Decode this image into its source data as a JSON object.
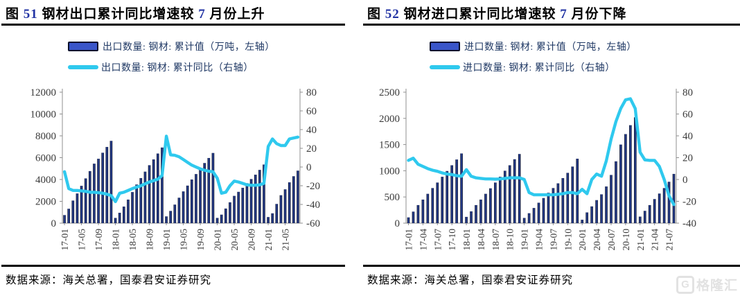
{
  "colors": {
    "bar_core": "#2c47a5",
    "bar_edge": "#04060f",
    "line": "#2fc9ee",
    "legend_text": "#1f3864",
    "title_number_blue": "#2334a4",
    "axis_text": "#3a3a3a",
    "axis_line": "#8f8f8f"
  },
  "watermark": {
    "icon_letter": "G",
    "text": "格隆汇"
  },
  "charts": [
    {
      "title": {
        "prefix": "图 ",
        "number": "51",
        "mid": " 钢材出口累计同比增速较 ",
        "number2": "7",
        "end": " 月份上升"
      },
      "legend": [
        {
          "type": "bar",
          "label": "出口数量: 钢材: 累计值（万吨，左轴）"
        },
        {
          "type": "line",
          "label": "出口数量: 钢材: 累计同比（右轴）"
        }
      ],
      "source": "数据来源：海关总署，国泰君安证券研究"
    },
    {
      "title": {
        "prefix": "图 ",
        "number": "52",
        "mid": " 钢材进口累计同比增速较 ",
        "number2": "7",
        "end": " 月份下降"
      },
      "legend": [
        {
          "type": "bar",
          "label": "进口数量: 钢材: 累计值（万吨，左轴）"
        },
        {
          "type": "line",
          "label": "进口数量: 钢材: 累计同比（右轴）"
        }
      ],
      "source": "数据来源：海关总署，国泰君安证券研究"
    }
  ],
  "chart_data": [
    {
      "type": "bar+line",
      "title": "图 51 钢材出口累计同比增速较 7 月份上升",
      "x_monthly_range": "2017-01 … 2021-08 (56 monthly points)",
      "x_tick_labels": [
        "17-01",
        "17-05",
        "17-09",
        "18-01",
        "18-05",
        "18-09",
        "19-01",
        "19-05",
        "19-09",
        "20-01",
        "20-05",
        "20-09",
        "21-01",
        "21-05"
      ],
      "x_tick_step": 4,
      "left_axis": {
        "min": 0,
        "max": 12000,
        "ticks": [
          0,
          2000,
          4000,
          6000,
          8000,
          10000,
          12000
        ]
      },
      "right_axis": {
        "min": -60,
        "max": 80,
        "ticks": [
          -60,
          -40,
          -20,
          0,
          20,
          40,
          60,
          80
        ]
      },
      "grid": false,
      "legend_position": "top",
      "series": [
        {
          "name": "出口数量: 钢材: 累计值（万吨，左轴）",
          "type": "bar",
          "axis": "left",
          "values": [
            740,
            1320,
            2070,
            2720,
            3420,
            4100,
            4770,
            5450,
            5900,
            6450,
            6980,
            7540,
            480,
            950,
            1520,
            2160,
            2850,
            3540,
            4130,
            4720,
            5310,
            5840,
            6380,
            6930,
            620,
            1120,
            1700,
            2330,
            2910,
            3440,
            4000,
            4500,
            5000,
            5510,
            5970,
            6430,
            480,
            780,
            1340,
            1910,
            2500,
            2870,
            3240,
            3660,
            4040,
            4440,
            4880,
            5370,
            560,
            900,
            1760,
            2560,
            3100,
            3740,
            4300,
            4810
          ]
        },
        {
          "name": "出口数量: 钢材: 累计同比（右轴）",
          "type": "line",
          "axis": "right",
          "values": [
            -5,
            -23,
            -25,
            -25,
            -25.5,
            -26,
            -27,
            -27,
            -27.5,
            -28,
            -29,
            -30.5,
            -37,
            -28,
            -27,
            -25,
            -23,
            -21.5,
            -20,
            -18,
            -16,
            -14.5,
            -13,
            -9,
            33,
            13,
            12.5,
            11,
            8,
            5,
            2,
            0,
            -2,
            -3.5,
            -4.5,
            -5,
            -12,
            -28,
            -27,
            -20,
            -15,
            -16,
            -17.5,
            -19,
            -19.5,
            -19.5,
            -19,
            -17.5,
            22,
            30,
            25,
            23,
            23,
            30,
            31,
            32
          ]
        }
      ]
    },
    {
      "type": "bar+line",
      "title": "图 52 钢材进口累计同比增速较 7 月份下降",
      "x_monthly_range": "2017-01 … 2021-08 (56 monthly points)",
      "x_tick_labels": [
        "17-01",
        "17-04",
        "17-07",
        "17-10",
        "18-01",
        "18-04",
        "18-07",
        "18-10",
        "19-01",
        "19-04",
        "19-07",
        "19-10",
        "20-01",
        "20-04",
        "20-07",
        "20-10",
        "21-01",
        "21-04",
        "21-07"
      ],
      "x_tick_step": 3,
      "left_axis": {
        "min": 0,
        "max": 2500,
        "ticks": [
          0,
          500,
          1000,
          1500,
          2000,
          2500
        ]
      },
      "right_axis": {
        "min": -40,
        "max": 80,
        "ticks": [
          -40,
          -20,
          0,
          20,
          40,
          60,
          80
        ]
      },
      "grid": false,
      "legend_position": "top",
      "series": [
        {
          "name": "进口数量: 钢材: 累计值（万吨，左轴）",
          "type": "bar",
          "axis": "left",
          "values": [
            110,
            220,
            345,
            450,
            560,
            670,
            775,
            885,
            995,
            1105,
            1215,
            1330,
            120,
            225,
            345,
            450,
            560,
            665,
            775,
            885,
            1000,
            1105,
            1220,
            1320,
            100,
            190,
            290,
            390,
            480,
            580,
            670,
            760,
            860,
            960,
            1080,
            1230,
            65,
            205,
            320,
            440,
            550,
            700,
            920,
            1180,
            1500,
            1700,
            1870,
            2020,
            125,
            235,
            345,
            460,
            565,
            670,
            790,
            940
          ]
        },
        {
          "name": "进口数量: 钢材: 累计同比（右轴）",
          "type": "line",
          "axis": "right",
          "values": [
            17.5,
            19.5,
            14,
            12,
            10,
            8.5,
            7.5,
            6,
            5,
            4.5,
            3.5,
            3,
            9,
            3,
            1.5,
            1,
            0.5,
            0.5,
            0.3,
            0.5,
            1,
            1.5,
            1.5,
            1.5,
            0,
            -12,
            -14,
            -14,
            -14,
            -14,
            -14,
            -13.5,
            -13,
            -12,
            -12,
            -13,
            -9,
            -13,
            0,
            5,
            3,
            17,
            37,
            53,
            65,
            73,
            74,
            65,
            25,
            18,
            17.5,
            17.5,
            12,
            0,
            -15,
            -23
          ]
        }
      ]
    }
  ]
}
